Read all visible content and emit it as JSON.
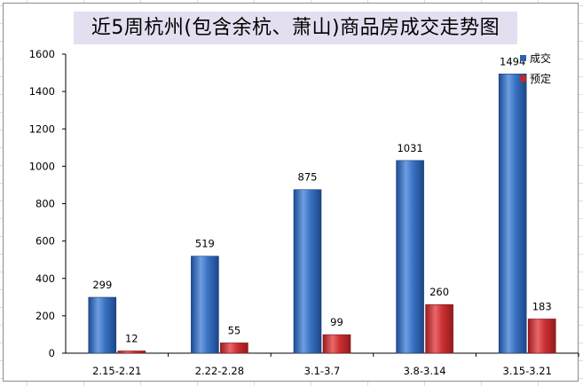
{
  "chart_data": {
    "type": "bar",
    "title": "近5周杭州(包含余杭、萧山)商品房成交走势图",
    "categories": [
      "2.15-2.21",
      "2.22-2.28",
      "3.1-3.7",
      "3.8-3.14",
      "3.15-3.21"
    ],
    "series": [
      {
        "name": "成交",
        "values": [
          299,
          519,
          875,
          1031,
          1494
        ],
        "color": "#2e62b0"
      },
      {
        "name": "预定",
        "values": [
          12,
          55,
          99,
          260,
          183
        ],
        "color": "#c0282c"
      }
    ],
    "ylim": [
      0,
      1600
    ],
    "yticks": [
      0,
      200,
      400,
      600,
      800,
      1000,
      1200,
      1400,
      1600
    ],
    "grid": false,
    "legend_position": "top-right",
    "data_labels": true
  }
}
